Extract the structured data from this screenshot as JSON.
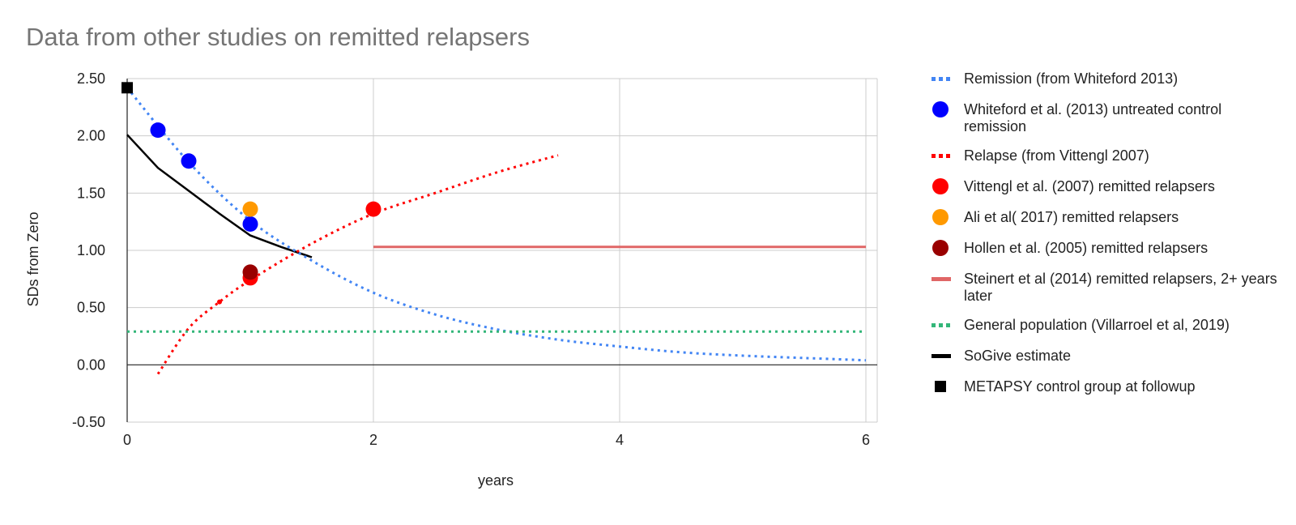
{
  "chart_data": {
    "type": "scatter",
    "title": "Data from other studies on remitted relapsers",
    "xlabel": "years",
    "ylabel": "SDs from Zero",
    "xlim": [
      0,
      6
    ],
    "ylim": [
      -0.5,
      2.5
    ],
    "x_ticks": [
      "0",
      "2",
      "4",
      "6"
    ],
    "y_ticks": [
      "2.50",
      "2.00",
      "1.50",
      "1.00",
      "0.50",
      "0.00",
      "-0.50"
    ],
    "grid": true,
    "legend_position": "right",
    "series": [
      {
        "name": "Remission (from Whiteford 2013)",
        "kind": "dotted-line",
        "color": "#4285f4",
        "x": [
          0,
          0.5,
          1,
          1.5,
          2,
          2.5,
          3,
          3.5,
          4,
          4.5,
          5,
          5.5,
          6
        ],
        "y": [
          2.42,
          1.77,
          1.26,
          0.91,
          0.63,
          0.44,
          0.31,
          0.22,
          0.16,
          0.11,
          0.08,
          0.06,
          0.04
        ]
      },
      {
        "name": "Whiteford et al. (2013) untreated control remission",
        "kind": "points",
        "color": "#0000ff",
        "x": [
          0.25,
          0.5,
          1
        ],
        "y": [
          2.05,
          1.78,
          1.23
        ]
      },
      {
        "name": "Relapse (from Vittengl 2007)",
        "kind": "dotted-line",
        "color": "#ff0000",
        "x": [
          0.25,
          0.5,
          0.75,
          1,
          1.5,
          2,
          2.5,
          3,
          3.5
        ],
        "y": [
          -0.08,
          0.32,
          0.55,
          0.74,
          1.06,
          1.32,
          1.5,
          1.68,
          1.83
        ]
      },
      {
        "name": "Vittengl et al. (2007) remitted relapsers",
        "kind": "points",
        "color": "#ff0000",
        "x": [
          1,
          2
        ],
        "y": [
          0.76,
          1.36
        ]
      },
      {
        "name": "Ali et al( 2017) remitted relapsers",
        "kind": "points",
        "color": "#ff9900",
        "x": [
          1
        ],
        "y": [
          1.36
        ]
      },
      {
        "name": "Hollen et al. (2005) remitted relapsers",
        "kind": "points",
        "color": "#990000",
        "x": [
          1
        ],
        "y": [
          0.81
        ]
      },
      {
        "name": "Steinert et al (2014) remitted relapsers, 2+ years later",
        "kind": "line",
        "color": "#e06666",
        "x": [
          2,
          6
        ],
        "y": [
          1.03,
          1.03
        ]
      },
      {
        "name": "General population (Villarroel et al, 2019)",
        "kind": "dotted-line",
        "color": "#33b679",
        "x": [
          0,
          6
        ],
        "y": [
          0.29,
          0.29
        ]
      },
      {
        "name": "SoGive estimate",
        "kind": "line",
        "color": "#000000",
        "x": [
          0,
          0.25,
          0.5,
          0.75,
          1,
          1.25,
          1.5
        ],
        "y": [
          2.01,
          1.72,
          1.52,
          1.32,
          1.13,
          1.03,
          0.94
        ]
      },
      {
        "name": "METAPSY control group at followup",
        "kind": "square",
        "color": "#000000",
        "x": [
          0
        ],
        "y": [
          2.42
        ]
      }
    ]
  }
}
